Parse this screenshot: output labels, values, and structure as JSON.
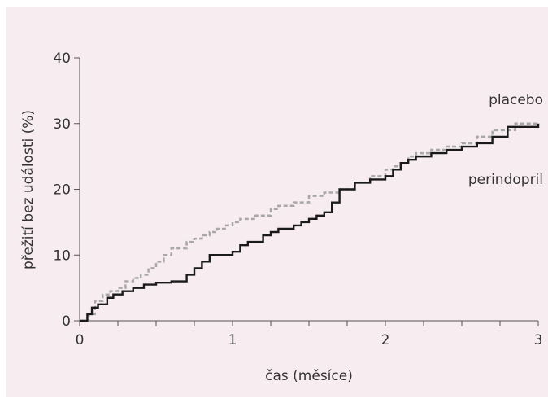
{
  "chart_data": {
    "type": "line",
    "xlabel": "čas (měsíce)",
    "ylabel": "přežití bez události (%)",
    "xlim": [
      0,
      3
    ],
    "ylim": [
      0,
      40
    ],
    "x_ticks": [
      "0",
      "1",
      "2",
      "3"
    ],
    "y_ticks": [
      "0",
      "10",
      "20",
      "30",
      "40"
    ],
    "grid": false,
    "colors": {
      "placebo": "#a8a8a8",
      "perindopril": "#1a1a1a",
      "background": "#f7ecef"
    },
    "series": [
      {
        "name": "placebo",
        "style": "dashed-step",
        "x": [
          0,
          0.06,
          0.1,
          0.15,
          0.2,
          0.25,
          0.3,
          0.35,
          0.4,
          0.45,
          0.5,
          0.55,
          0.6,
          0.7,
          0.75,
          0.8,
          0.85,
          0.9,
          0.95,
          1.0,
          1.05,
          1.15,
          1.25,
          1.3,
          1.4,
          1.5,
          1.6,
          1.7,
          1.8,
          1.9,
          2.0,
          2.05,
          2.1,
          2.15,
          2.2,
          2.3,
          2.4,
          2.5,
          2.6,
          2.7,
          2.85,
          3.0
        ],
        "y": [
          0,
          1,
          3,
          4,
          4.5,
          5,
          6,
          6.5,
          7,
          8,
          9,
          10,
          11,
          12,
          12.5,
          13,
          13.5,
          14,
          14.5,
          15,
          15.5,
          16,
          17,
          17.5,
          18,
          19,
          19.5,
          20,
          21,
          22,
          23,
          23.5,
          24,
          25,
          25.5,
          26,
          26.5,
          27,
          28,
          29,
          30,
          30
        ]
      },
      {
        "name": "perindopril",
        "style": "solid-step",
        "x": [
          0,
          0.05,
          0.08,
          0.12,
          0.18,
          0.22,
          0.28,
          0.35,
          0.42,
          0.5,
          0.6,
          0.7,
          0.75,
          0.8,
          0.85,
          1.0,
          1.05,
          1.1,
          1.2,
          1.25,
          1.3,
          1.4,
          1.45,
          1.5,
          1.55,
          1.6,
          1.65,
          1.7,
          1.8,
          1.9,
          2.0,
          2.05,
          2.1,
          2.15,
          2.2,
          2.3,
          2.4,
          2.5,
          2.6,
          2.7,
          2.8,
          3.0
        ],
        "y": [
          0,
          1,
          2,
          2.5,
          3.5,
          4,
          4.5,
          5,
          5.5,
          5.8,
          6,
          7,
          8,
          9,
          10,
          10.5,
          11.5,
          12,
          13,
          13.5,
          14,
          14.5,
          15,
          15.5,
          16,
          16.5,
          18,
          20,
          21,
          21.5,
          22,
          23,
          24,
          24.5,
          25,
          25.5,
          26,
          26.5,
          27,
          28,
          29.5,
          30
        ]
      }
    ]
  }
}
